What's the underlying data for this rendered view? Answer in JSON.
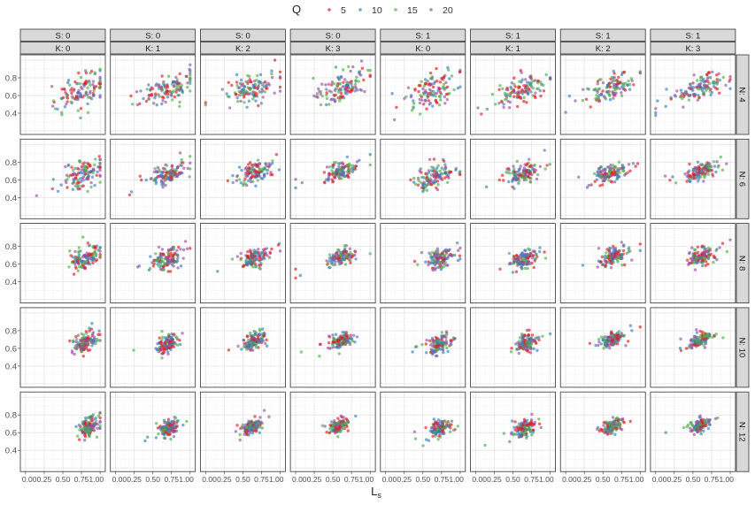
{
  "chart_data": {
    "type": "scatter",
    "title": "",
    "xlabel": "L",
    "xlabel_subscript": "s",
    "ylabel": "",
    "xlim": [
      -0.07,
      1.07
    ],
    "ylim": [
      0.16,
      1.06
    ],
    "xticks": [
      "0.00",
      "0.25",
      "0.50",
      "0.75",
      "1.00"
    ],
    "xtick_values": [
      0,
      0.25,
      0.5,
      0.75,
      1
    ],
    "yticks": [
      "0.4",
      "0.6",
      "0.8"
    ],
    "ytick_values": [
      0.4,
      0.6,
      0.8
    ],
    "grid": true,
    "legend": {
      "title": "Q",
      "placement": "top",
      "entries": [
        {
          "label": "5",
          "color": "#e41a1c"
        },
        {
          "label": "10",
          "color": "#377eb8"
        },
        {
          "label": "15",
          "color": "#4daf4a"
        },
        {
          "label": "20",
          "color": "#984ea3"
        }
      ]
    },
    "facet_cols": [
      {
        "S": "S: 0",
        "K": "K: 0"
      },
      {
        "S": "S: 0",
        "K": "K: 1"
      },
      {
        "S": "S: 0",
        "K": "K: 2"
      },
      {
        "S": "S: 0",
        "K": "K: 3"
      },
      {
        "S": "S: 1",
        "K": "K: 0"
      },
      {
        "S": "S: 1",
        "K": "K: 1"
      },
      {
        "S": "S: 1",
        "K": "K: 2"
      },
      {
        "S": "S: 1",
        "K": "K: 3"
      }
    ],
    "facet_rows": [
      "N: 4",
      "N: 6",
      "N: 8",
      "N: 10",
      "N: 12"
    ],
    "points_per_panel": 120,
    "panel_distribution_fields": [
      "x_center",
      "x_spread",
      "y_center",
      "y_spread"
    ],
    "panel_distributions": [
      [
        [
          0.75,
          0.22,
          0.65,
          0.1
        ],
        [
          0.7,
          0.2,
          0.66,
          0.08
        ],
        [
          0.62,
          0.2,
          0.68,
          0.08
        ],
        [
          0.6,
          0.2,
          0.69,
          0.08
        ],
        [
          0.65,
          0.22,
          0.66,
          0.1
        ],
        [
          0.6,
          0.2,
          0.67,
          0.08
        ],
        [
          0.6,
          0.2,
          0.69,
          0.07
        ],
        [
          0.6,
          0.2,
          0.69,
          0.07
        ]
      ],
      [
        [
          0.78,
          0.15,
          0.66,
          0.08
        ],
        [
          0.7,
          0.14,
          0.67,
          0.06
        ],
        [
          0.65,
          0.13,
          0.68,
          0.06
        ],
        [
          0.6,
          0.13,
          0.69,
          0.05
        ],
        [
          0.65,
          0.15,
          0.64,
          0.07
        ],
        [
          0.62,
          0.13,
          0.66,
          0.06
        ],
        [
          0.6,
          0.13,
          0.67,
          0.05
        ],
        [
          0.6,
          0.13,
          0.69,
          0.05
        ]
      ],
      [
        [
          0.8,
          0.12,
          0.67,
          0.07
        ],
        [
          0.7,
          0.11,
          0.66,
          0.06
        ],
        [
          0.65,
          0.11,
          0.67,
          0.05
        ],
        [
          0.6,
          0.11,
          0.68,
          0.05
        ],
        [
          0.72,
          0.11,
          0.66,
          0.06
        ],
        [
          0.65,
          0.11,
          0.65,
          0.05
        ],
        [
          0.62,
          0.11,
          0.68,
          0.05
        ],
        [
          0.62,
          0.11,
          0.69,
          0.05
        ]
      ],
      [
        [
          0.82,
          0.09,
          0.67,
          0.06
        ],
        [
          0.7,
          0.09,
          0.66,
          0.05
        ],
        [
          0.65,
          0.09,
          0.68,
          0.05
        ],
        [
          0.62,
          0.09,
          0.69,
          0.04
        ],
        [
          0.72,
          0.09,
          0.65,
          0.05
        ],
        [
          0.68,
          0.09,
          0.66,
          0.05
        ],
        [
          0.62,
          0.09,
          0.7,
          0.04
        ],
        [
          0.6,
          0.09,
          0.7,
          0.04
        ]
      ],
      [
        [
          0.85,
          0.07,
          0.67,
          0.06
        ],
        [
          0.72,
          0.08,
          0.65,
          0.05
        ],
        [
          0.62,
          0.08,
          0.67,
          0.04
        ],
        [
          0.58,
          0.08,
          0.68,
          0.04
        ],
        [
          0.72,
          0.08,
          0.65,
          0.05
        ],
        [
          0.66,
          0.08,
          0.65,
          0.05
        ],
        [
          0.62,
          0.08,
          0.67,
          0.04
        ],
        [
          0.6,
          0.08,
          0.69,
          0.04
        ]
      ]
    ]
  }
}
